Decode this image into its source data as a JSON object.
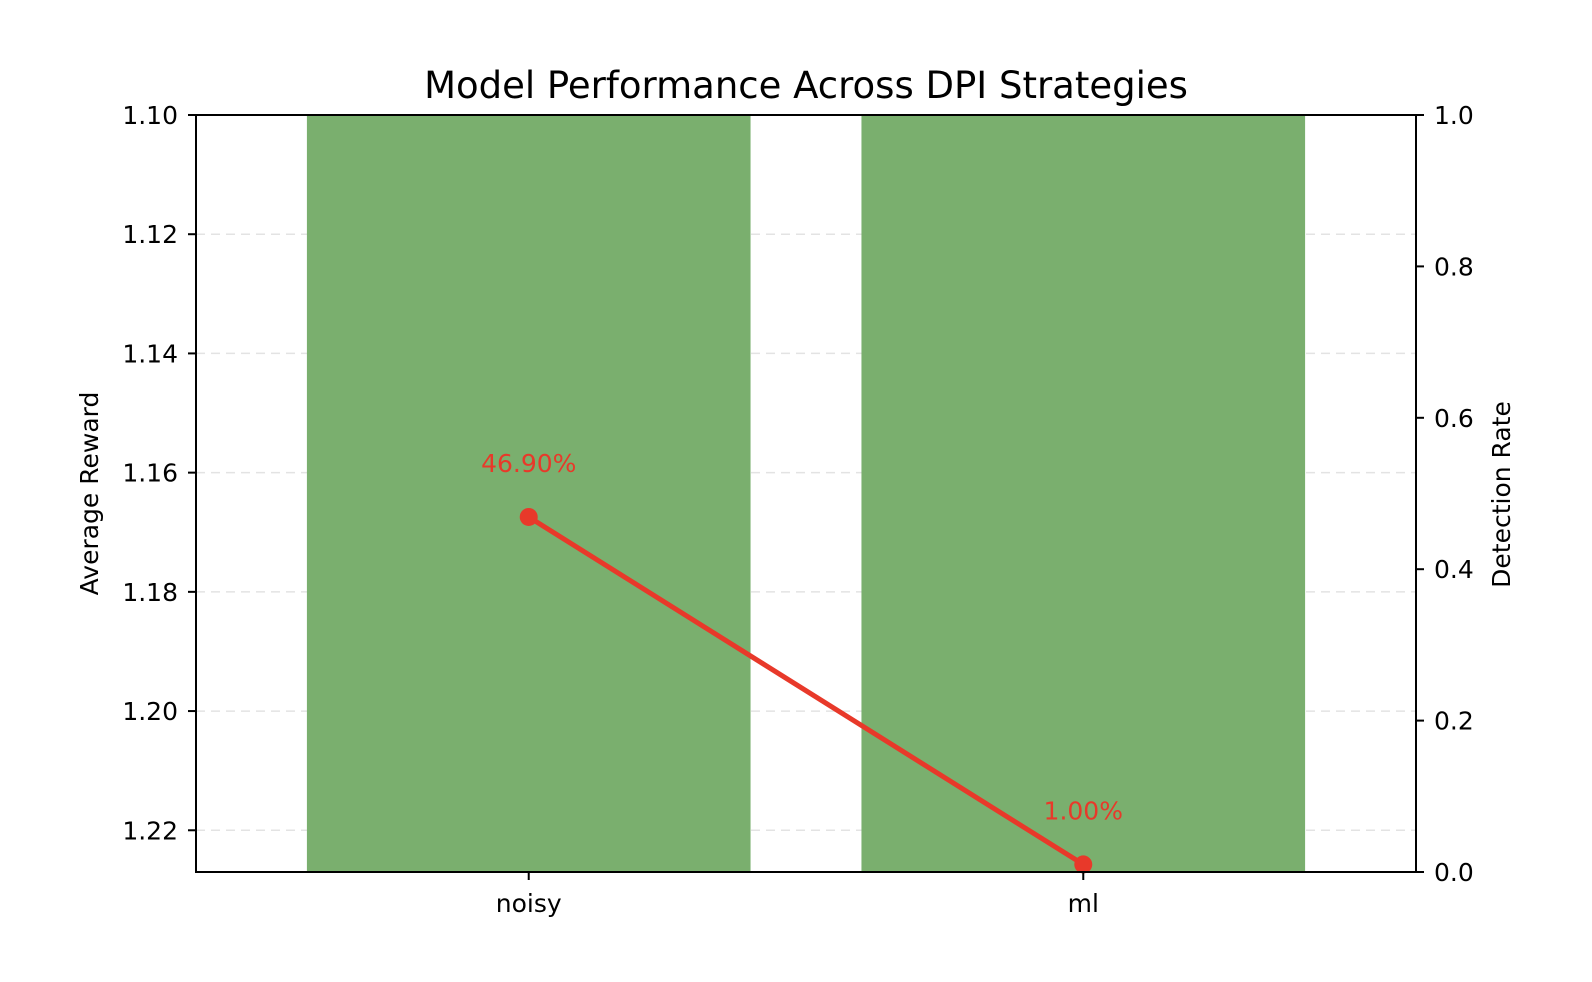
{
  "chart_data": {
    "type": "bar",
    "title": "Model Performance Across DPI Strategies",
    "categories": [
      "noisy",
      "ml"
    ],
    "ylabel": "Average Reward",
    "ylabel_right": "Detection Rate",
    "xlabel": "",
    "ylim": [
      1.227,
      1.1
    ],
    "ylim_right": [
      0.0,
      1.0
    ],
    "y_ticks": [
      "1.10",
      "1.12",
      "1.14",
      "1.16",
      "1.18",
      "1.20",
      "1.22"
    ],
    "y_ticks_right": [
      "0.0",
      "0.2",
      "0.4",
      "0.6",
      "0.8",
      "1.0"
    ],
    "grid": true,
    "series": [
      {
        "type": "bar",
        "axis": "left",
        "values": [
          1.227,
          1.227
        ],
        "color": "#7aaf6e"
      },
      {
        "type": "line",
        "axis": "right",
        "values": [
          0.469,
          0.01
        ],
        "labels": [
          "46.90%",
          "1.00%"
        ],
        "color": "#e8392a"
      }
    ]
  }
}
